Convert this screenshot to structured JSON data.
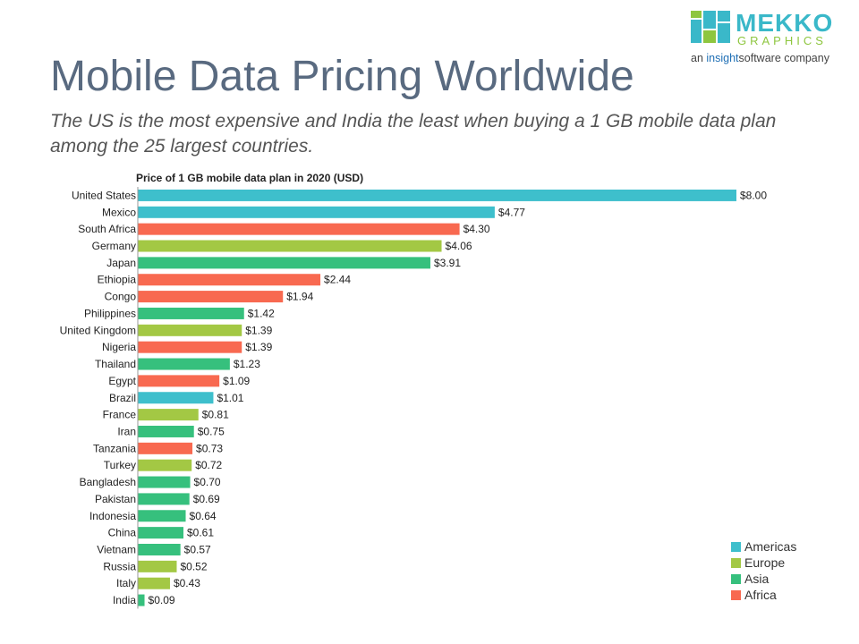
{
  "brand": {
    "name": "MEKKO",
    "sub": "GRAPHICS",
    "tag_prefix": "an ",
    "tag_insight": "insight",
    "tag_suffix": "software company"
  },
  "title": "Mobile Data Pricing Worldwide",
  "subtitle": "The US is the most expensive and India the least when buying a 1 GB mobile data plan among the 25 largest countries.",
  "colors": {
    "Americas": "#3ebfcc",
    "Europe": "#a3c844",
    "Asia": "#36c07d",
    "Africa": "#f86950"
  },
  "chart_data": {
    "type": "bar",
    "orientation": "horizontal",
    "title": "Price of 1 GB mobile data plan in 2020 (USD)",
    "xlabel": "",
    "ylabel": "",
    "xlim": [
      0,
      8
    ],
    "value_prefix": "$",
    "categories": [
      "United States",
      "Mexico",
      "South Africa",
      "Germany",
      "Japan",
      "Ethiopia",
      "Congo",
      "Philippines",
      "United Kingdom",
      "Nigeria",
      "Thailand",
      "Egypt",
      "Brazil",
      "France",
      "Iran",
      "Tanzania",
      "Turkey",
      "Bangladesh",
      "Pakistan",
      "Indonesia",
      "China",
      "Vietnam",
      "Russia",
      "Italy",
      "India"
    ],
    "values": [
      8.0,
      4.77,
      4.3,
      4.06,
      3.91,
      2.44,
      1.94,
      1.42,
      1.39,
      1.39,
      1.23,
      1.09,
      1.01,
      0.81,
      0.75,
      0.73,
      0.72,
      0.7,
      0.69,
      0.64,
      0.61,
      0.57,
      0.52,
      0.43,
      0.09
    ],
    "labels": [
      "$8.00",
      "$4.77",
      "$4.30",
      "$4.06",
      "$3.91",
      "$2.44",
      "$1.94",
      "$1.42",
      "$1.39",
      "$1.39",
      "$1.23",
      "$1.09",
      "$1.01",
      "$0.81",
      "$0.75",
      "$0.73",
      "$0.72",
      "$0.70",
      "$0.69",
      "$0.64",
      "$0.61",
      "$0.57",
      "$0.52",
      "$0.43",
      "$0.09"
    ],
    "regions": [
      "Americas",
      "Americas",
      "Africa",
      "Europe",
      "Asia",
      "Africa",
      "Africa",
      "Asia",
      "Europe",
      "Africa",
      "Asia",
      "Africa",
      "Americas",
      "Europe",
      "Asia",
      "Africa",
      "Europe",
      "Asia",
      "Asia",
      "Asia",
      "Asia",
      "Asia",
      "Europe",
      "Europe",
      "Asia"
    ],
    "legend": [
      "Americas",
      "Europe",
      "Asia",
      "Africa"
    ],
    "legend_position": "bottom-right"
  }
}
